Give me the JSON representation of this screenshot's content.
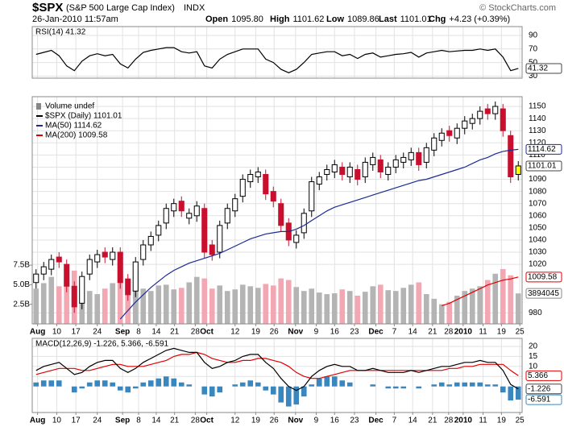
{
  "header": {
    "symbol": "$SPX",
    "name": "(S&P 500 Large Cap Index)",
    "exchange": "INDX",
    "date": "26-Jan-2010 11:57am",
    "stats": [
      {
        "label": "Open",
        "value": "1095.80"
      },
      {
        "label": "High",
        "value": "1101.62"
      },
      {
        "label": "Low",
        "value": "1089.86"
      },
      {
        "label": "Last",
        "value": "1101.01"
      },
      {
        "label": "Chg",
        "value": "+4.23 (+0.39%)"
      }
    ],
    "credit": "© StockCharts.com"
  },
  "chart_data": [
    {
      "type": "line",
      "title": "RSI(14) 41.32",
      "xlim": [
        -0.5,
        63.5
      ],
      "ylim": [
        27,
        103
      ],
      "yticks": [
        90,
        70,
        50,
        30
      ],
      "grid": true,
      "series": [
        {
          "color": "#000000",
          "end_label": "41.32",
          "values": [
            62,
            65,
            68,
            60,
            45,
            38,
            52,
            60,
            63,
            60,
            62,
            48,
            42,
            55,
            65,
            68,
            70,
            72,
            72,
            66,
            64,
            66,
            45,
            42,
            55,
            62,
            66,
            70,
            70,
            70,
            55,
            50,
            40,
            35,
            40,
            50,
            62,
            64,
            66,
            66,
            60,
            62,
            56,
            62,
            64,
            58,
            60,
            62,
            63,
            65,
            58,
            64,
            66,
            68,
            66,
            67,
            68,
            68,
            70,
            68,
            70,
            58,
            38,
            41.32
          ]
        }
      ]
    },
    {
      "type": "candlestick",
      "xlim": [
        -0.5,
        63.5
      ],
      "ylim": [
        971,
        1158
      ],
      "yticks": [
        1150,
        1140,
        1130,
        1120,
        1110,
        1100,
        1090,
        1080,
        1070,
        1060,
        1050,
        1040,
        1030,
        1020,
        980
      ],
      "grid": true,
      "y2lim": [
        0,
        29
      ],
      "y2ticks": [
        {
          "value": 7.5,
          "label": "7.5B"
        },
        {
          "value": 5.0,
          "label": "5.0B"
        },
        {
          "value": 2.5,
          "label": "2.5B"
        }
      ],
      "xticks": [
        {
          "value": 0.2,
          "label": "Aug"
        },
        {
          "value": 2.7,
          "label": "10"
        },
        {
          "value": 5.2,
          "label": "17"
        },
        {
          "value": 8.0,
          "label": "24"
        },
        {
          "value": 11.3,
          "label": "Sep"
        },
        {
          "value": 13.4,
          "label": "8"
        },
        {
          "value": 15.7,
          "label": "14"
        },
        {
          "value": 18.1,
          "label": "21"
        },
        {
          "value": 20.8,
          "label": "28"
        },
        {
          "value": 22.3,
          "label": "Oct"
        },
        {
          "value": 26.0,
          "label": "12"
        },
        {
          "value": 28.7,
          "label": "19"
        },
        {
          "value": 31.1,
          "label": "26"
        },
        {
          "value": 33.9,
          "label": "Nov"
        },
        {
          "value": 36.6,
          "label": "9"
        },
        {
          "value": 39.0,
          "label": "16"
        },
        {
          "value": 41.6,
          "label": "23"
        },
        {
          "value": 44.4,
          "label": "Dec"
        },
        {
          "value": 46.8,
          "label": "7"
        },
        {
          "value": 49.2,
          "label": "14"
        },
        {
          "value": 51.8,
          "label": "21"
        },
        {
          "value": 53.9,
          "label": "28"
        },
        {
          "value": 55.8,
          "label": "2010"
        },
        {
          "value": 58.4,
          "label": "11"
        },
        {
          "value": 60.8,
          "label": "19"
        },
        {
          "value": 63.2,
          "label": "25"
        }
      ],
      "series": [
        {
          "type": "bar",
          "axis": "y2",
          "name": "Volume undef",
          "color": "#b4b4b4",
          "down_color": "#f2a7b3",
          "end_label": "3894045",
          "values": [
            4.5,
            5.2,
            6.0,
            4.8,
            5.5,
            6.8,
            5.0,
            4.2,
            3.8,
            4.5,
            5.2,
            6.2,
            5.5,
            4.8,
            4.5,
            4.2,
            4.9,
            5.0,
            4.4,
            4.6,
            5.3,
            6.0,
            5.8,
            4.5,
            4.9,
            4.2,
            4.4,
            5.0,
            4.8,
            4.6,
            5.1,
            4.9,
            5.8,
            5.6,
            4.7,
            4.2,
            4.5,
            4.0,
            3.8,
            3.9,
            4.4,
            4.2,
            3.6,
            4.1,
            4.8,
            5.0,
            4.3,
            4.2,
            4.6,
            5.0,
            5.3,
            3.8,
            3.2,
            2.5,
            2.8,
            3.6,
            4.2,
            4.5,
            4.8,
            5.6,
            6.4,
            7.0,
            6.2,
            3.89
          ]
        },
        {
          "type": "candlestick",
          "name": "$SPX (Daily) 1101.01",
          "color": "#000000",
          "down_color": "#c8102e",
          "highlight_color": "#ffff00",
          "end_label": "1101.01",
          "open": [
            1005,
            1012,
            1016,
            1026,
            1020,
            1002,
            988,
            1012,
            1022,
            1030,
            1024,
            1030,
            1008,
            998,
            1024,
            1036,
            1044,
            1054,
            1064,
            1072,
            1058,
            1060,
            1066,
            1036,
            1030,
            1054,
            1064,
            1076,
            1088,
            1092,
            1094,
            1080,
            1070,
            1054,
            1038,
            1046,
            1064,
            1086,
            1094,
            1096,
            1100,
            1092,
            1098,
            1092,
            1102,
            1106,
            1094,
            1100,
            1104,
            1106,
            1112,
            1104,
            1114,
            1122,
            1130,
            1124,
            1132,
            1136,
            1140,
            1148,
            1144,
            1148,
            1126,
            1094
          ],
          "high": [
            1016,
            1022,
            1028,
            1030,
            1024,
            1006,
            1014,
            1028,
            1032,
            1034,
            1034,
            1034,
            1012,
            1026,
            1040,
            1047,
            1056,
            1070,
            1074,
            1076,
            1066,
            1072,
            1070,
            1040,
            1056,
            1070,
            1078,
            1094,
            1098,
            1100,
            1098,
            1084,
            1074,
            1058,
            1048,
            1066,
            1092,
            1096,
            1102,
            1106,
            1104,
            1104,
            1102,
            1108,
            1112,
            1110,
            1104,
            1110,
            1112,
            1116,
            1116,
            1120,
            1128,
            1132,
            1134,
            1136,
            1142,
            1144,
            1150,
            1152,
            1154,
            1152,
            1130,
            1105
          ],
          "low": [
            1000,
            1007,
            1011,
            1017,
            997,
            980,
            983,
            1007,
            1017,
            1021,
            1019,
            1000,
            990,
            993,
            1019,
            1031,
            1039,
            1049,
            1059,
            1059,
            1053,
            1055,
            1025,
            1023,
            1025,
            1049,
            1059,
            1071,
            1083,
            1087,
            1073,
            1067,
            1047,
            1035,
            1033,
            1041,
            1059,
            1081,
            1089,
            1091,
            1089,
            1087,
            1085,
            1087,
            1097,
            1091,
            1089,
            1095,
            1099,
            1101,
            1097,
            1099,
            1109,
            1117,
            1121,
            1119,
            1127,
            1131,
            1135,
            1139,
            1139,
            1125,
            1087,
            1089
          ],
          "close": [
            1012,
            1018,
            1024,
            1022,
            1002,
            985,
            1010,
            1024,
            1028,
            1026,
            1030,
            1005,
            995,
            1022,
            1036,
            1043,
            1052,
            1066,
            1070,
            1064,
            1062,
            1068,
            1030,
            1028,
            1052,
            1066,
            1074,
            1090,
            1094,
            1096,
            1078,
            1072,
            1052,
            1040,
            1044,
            1062,
            1088,
            1092,
            1098,
            1102,
            1094,
            1100,
            1090,
            1104,
            1108,
            1096,
            1100,
            1106,
            1108,
            1112,
            1102,
            1116,
            1124,
            1128,
            1126,
            1132,
            1138,
            1140,
            1146,
            1144,
            1150,
            1130,
            1092,
            1101.01
          ]
        },
        {
          "type": "line",
          "name": "MA(50) 1114.62",
          "color": "#1c2a96",
          "end_label": "1114.62",
          "values": [
            null,
            null,
            null,
            null,
            null,
            null,
            null,
            null,
            null,
            null,
            null,
            975,
            982,
            989,
            995,
            1001,
            1006,
            1011,
            1015,
            1018,
            1021,
            1023,
            1025,
            1027,
            1029,
            1032,
            1035,
            1038,
            1041,
            1043,
            1045,
            1046,
            1047,
            1047,
            1049,
            1052,
            1056,
            1060,
            1064,
            1067,
            1069,
            1071,
            1073,
            1075,
            1077,
            1079,
            1081,
            1083,
            1085,
            1087,
            1089,
            1090,
            1092,
            1094,
            1096,
            1098,
            1100,
            1103,
            1106,
            1108,
            1111,
            1113,
            1114,
            1114.62
          ]
        },
        {
          "type": "line",
          "name": "MA(200) 1009.58",
          "color": "#e00000",
          "end_label": "1009.58",
          "values": [
            null,
            null,
            null,
            null,
            null,
            null,
            null,
            null,
            null,
            null,
            null,
            null,
            null,
            null,
            null,
            null,
            null,
            null,
            null,
            null,
            null,
            null,
            null,
            null,
            null,
            null,
            null,
            null,
            null,
            null,
            null,
            null,
            null,
            null,
            null,
            null,
            null,
            null,
            null,
            null,
            null,
            null,
            null,
            null,
            null,
            null,
            null,
            null,
            null,
            null,
            null,
            null,
            null,
            986,
            988,
            991,
            994,
            997,
            1000,
            1003,
            1005,
            1007,
            1008,
            1009.58
          ]
        }
      ]
    },
    {
      "type": "line",
      "title": "MACD(12,26,9) -1.226, 5.366, -6.591",
      "xlim": [
        -0.5,
        63.5
      ],
      "ylim": [
        -13,
        24
      ],
      "yticks": [
        20,
        15,
        10,
        5
      ],
      "grid": true,
      "xticks": [
        {
          "value": 0.2,
          "label": "Aug"
        },
        {
          "value": 2.7,
          "label": "10"
        },
        {
          "value": 5.2,
          "label": "17"
        },
        {
          "value": 8.0,
          "label": "24"
        },
        {
          "value": 11.3,
          "label": "Sep"
        },
        {
          "value": 13.4,
          "label": "8"
        },
        {
          "value": 15.7,
          "label": "14"
        },
        {
          "value": 18.1,
          "label": "21"
        },
        {
          "value": 20.8,
          "label": "28"
        },
        {
          "value": 22.3,
          "label": "Oct"
        },
        {
          "value": 26.0,
          "label": "12"
        },
        {
          "value": 28.7,
          "label": "19"
        },
        {
          "value": 31.1,
          "label": "26"
        },
        {
          "value": 33.9,
          "label": "Nov"
        },
        {
          "value": 36.6,
          "label": "9"
        },
        {
          "value": 39.0,
          "label": "16"
        },
        {
          "value": 41.6,
          "label": "23"
        },
        {
          "value": 44.4,
          "label": "Dec"
        },
        {
          "value": 46.8,
          "label": "7"
        },
        {
          "value": 49.2,
          "label": "14"
        },
        {
          "value": 51.8,
          "label": "21"
        },
        {
          "value": 53.9,
          "label": "28"
        },
        {
          "value": 55.8,
          "label": "2010"
        },
        {
          "value": 58.4,
          "label": "11"
        },
        {
          "value": 60.8,
          "label": "19"
        },
        {
          "value": 63.2,
          "label": "25"
        }
      ],
      "series": [
        {
          "type": "bar",
          "color": "#3a87c0",
          "end_label": "-6.591",
          "values": [
            2,
            3,
            3,
            3,
            0,
            -3,
            -1,
            2,
            3,
            3,
            2,
            -2,
            -3,
            -1,
            2,
            3,
            4,
            5,
            4,
            2,
            1,
            0,
            -4,
            -5,
            -3,
            0,
            1,
            2,
            3,
            2,
            -2,
            -4,
            -8,
            -10,
            -9,
            -5,
            1,
            4,
            5,
            5,
            3,
            2,
            0,
            0,
            1,
            0,
            -1,
            -1,
            -1,
            0,
            -1,
            0,
            1,
            2,
            1,
            2,
            2,
            2,
            2,
            1,
            1,
            -3,
            -7,
            -6.591
          ]
        },
        {
          "type": "line",
          "color": "#e00000",
          "end_label": "5.366",
          "values": [
            6,
            7,
            8,
            9,
            9,
            9,
            8,
            8,
            9,
            10,
            11,
            11,
            10,
            10,
            10,
            11,
            12,
            13,
            15,
            16,
            16,
            17,
            16,
            14,
            13,
            12,
            12,
            13,
            13,
            14,
            14,
            13,
            12,
            10,
            7,
            5,
            4,
            4,
            5,
            6,
            7,
            8,
            8,
            8,
            8,
            8,
            8,
            8,
            8,
            8,
            8,
            8,
            8,
            8,
            9,
            9,
            10,
            10,
            11,
            11,
            11,
            11,
            8,
            5.366
          ]
        },
        {
          "type": "line",
          "color": "#000000",
          "end_label": "-1.226",
          "values": [
            8,
            10,
            11,
            12,
            9,
            6,
            7,
            10,
            12,
            13,
            13,
            9,
            7,
            9,
            12,
            14,
            16,
            18,
            19,
            18,
            17,
            17,
            12,
            9,
            10,
            12,
            13,
            15,
            16,
            16,
            12,
            9,
            4,
            0,
            -2,
            0,
            5,
            8,
            10,
            11,
            10,
            10,
            8,
            8,
            9,
            8,
            7,
            7,
            7,
            8,
            7,
            8,
            9,
            10,
            10,
            11,
            12,
            12,
            13,
            12,
            12,
            8,
            1,
            -1.226
          ]
        }
      ]
    }
  ]
}
